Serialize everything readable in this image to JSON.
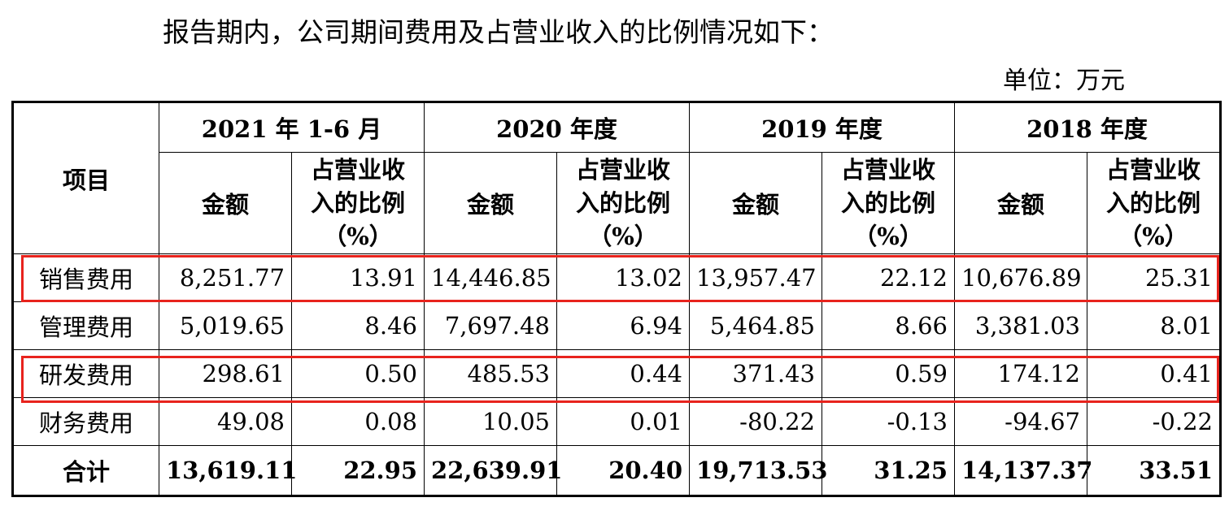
{
  "intro": "报告期内，公司期间费用及占营业收入的比例情况如下：",
  "unit": "单位：万元",
  "table": {
    "item_header": "项目",
    "periods": [
      "2021 年 1-6 月",
      "2020 年度",
      "2019 年度",
      "2018 年度"
    ],
    "amount_header": "金额",
    "pct_header_lines": [
      "占营业收",
      "入的比例",
      "（%）"
    ],
    "rows": [
      {
        "label": "销售费用",
        "values": [
          "8,251.77",
          "13.91",
          "14,446.85",
          "13.02",
          "13,957.47",
          "22.12",
          "10,676.89",
          "25.31"
        ]
      },
      {
        "label": "管理费用",
        "values": [
          "5,019.65",
          "8.46",
          "7,697.48",
          "6.94",
          "5,464.85",
          "8.66",
          "3,381.03",
          "8.01"
        ]
      },
      {
        "label": "研发费用",
        "values": [
          "298.61",
          "0.50",
          "485.53",
          "0.44",
          "371.43",
          "0.59",
          "174.12",
          "0.41"
        ]
      },
      {
        "label": "财务费用",
        "values": [
          "49.08",
          "0.08",
          "10.05",
          "0.01",
          "-80.22",
          "-0.13",
          "-94.67",
          "-0.22"
        ]
      }
    ],
    "total": {
      "label": "合计",
      "values": [
        "13,619.11",
        "22.95",
        "22,639.91",
        "20.40",
        "19,713.53",
        "31.25",
        "14,137.37",
        "33.51"
      ]
    }
  },
  "colors": {
    "highlight": "#e8231d"
  }
}
